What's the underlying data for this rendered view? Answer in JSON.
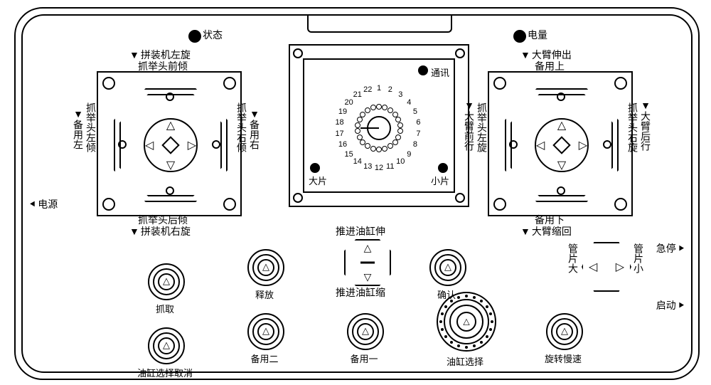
{
  "colors": {
    "stroke": "#000000",
    "bg": "#ffffff"
  },
  "leds": {
    "status": "状态",
    "battery": "电量"
  },
  "side": {
    "power": "电源",
    "estop": "急停",
    "start": "启动"
  },
  "joyL": {
    "topOuter": "拼装机左旋",
    "topInner": "抓举头前倾",
    "botInner": "抓举头后倾",
    "botOuter": "拼装机右旋",
    "leftOuter": "备用左",
    "leftInner": "抓举头左倾",
    "rightInner": "抓举头右倾",
    "rightOuter": "备用右"
  },
  "joyR": {
    "topOuter": "大臂伸出",
    "topInner": "备用上",
    "botInner": "备用下",
    "botOuter": "大臂缩回",
    "leftOuter": "大臂前行",
    "leftInner": "抓举头左旋",
    "rightInner": "抓举头右旋",
    "rightOuter": "大臂后行"
  },
  "screen": {
    "comm": "通讯",
    "big": "大片",
    "small": "小片",
    "count": 22,
    "pointerAt": 1
  },
  "buttons": {
    "grab": "抓取",
    "release": "释放",
    "confirm": "确认",
    "cylCancel": "油缸选择取消",
    "spare2": "备用二",
    "spare1": "备用一",
    "cylSelect": "油缸选择",
    "slow": "旋转慢速"
  },
  "rocker": {
    "up": "推进油缸伸",
    "dn": "推进油缸缩"
  },
  "hex": {
    "left": "管片大",
    "right": "管片小"
  }
}
